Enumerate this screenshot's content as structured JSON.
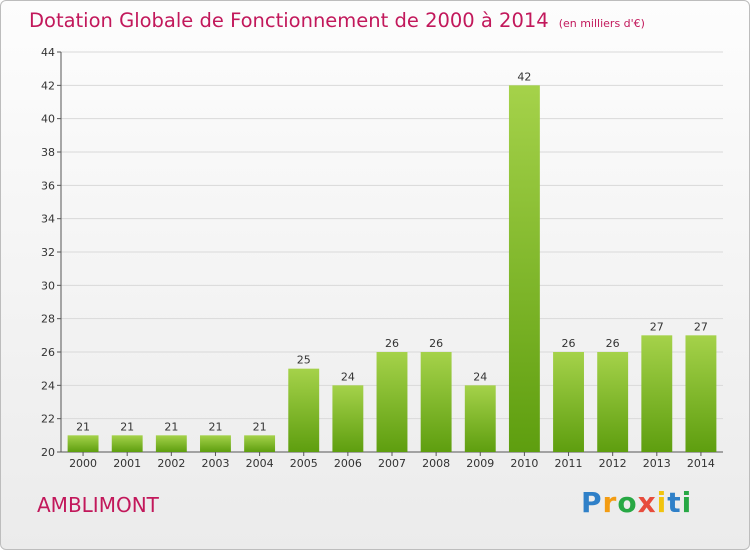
{
  "header": {
    "title": "Dotation Globale de Fonctionnement de 2000 à 2014",
    "unit": "(en milliers d'€)"
  },
  "footer": {
    "commune": "AMBLIMONT",
    "logo_letters": [
      "P",
      "r",
      "o",
      "x",
      "i",
      "t",
      "i"
    ],
    "logo_colors": [
      "#2f80c8",
      "#f39c12",
      "#27a844",
      "#e74c3c",
      "#f1c40f",
      "#2f80c8",
      "#27a844"
    ]
  },
  "colors": {
    "title": "#c2185b",
    "bar_light": "#a5d24a",
    "bar_dark": "#5e9e0f",
    "grid": "#d9d9d9",
    "axis": "#555555",
    "text": "#333333"
  },
  "chart_data": {
    "type": "bar",
    "title": "Dotation Globale de Fonctionnement de 2000 à 2014",
    "xlabel": "",
    "ylabel": "",
    "categories": [
      "2000",
      "2001",
      "2002",
      "2003",
      "2004",
      "2005",
      "2006",
      "2007",
      "2008",
      "2009",
      "2010",
      "2011",
      "2012",
      "2013",
      "2014"
    ],
    "values": [
      21,
      21,
      21,
      21,
      21,
      25,
      24,
      26,
      26,
      24,
      42,
      26,
      26,
      27,
      27
    ],
    "ylim": [
      20,
      44
    ],
    "yticks": [
      20,
      22,
      24,
      26,
      28,
      30,
      32,
      34,
      36,
      38,
      40,
      42,
      44
    ],
    "grid": true,
    "legend": "none"
  }
}
